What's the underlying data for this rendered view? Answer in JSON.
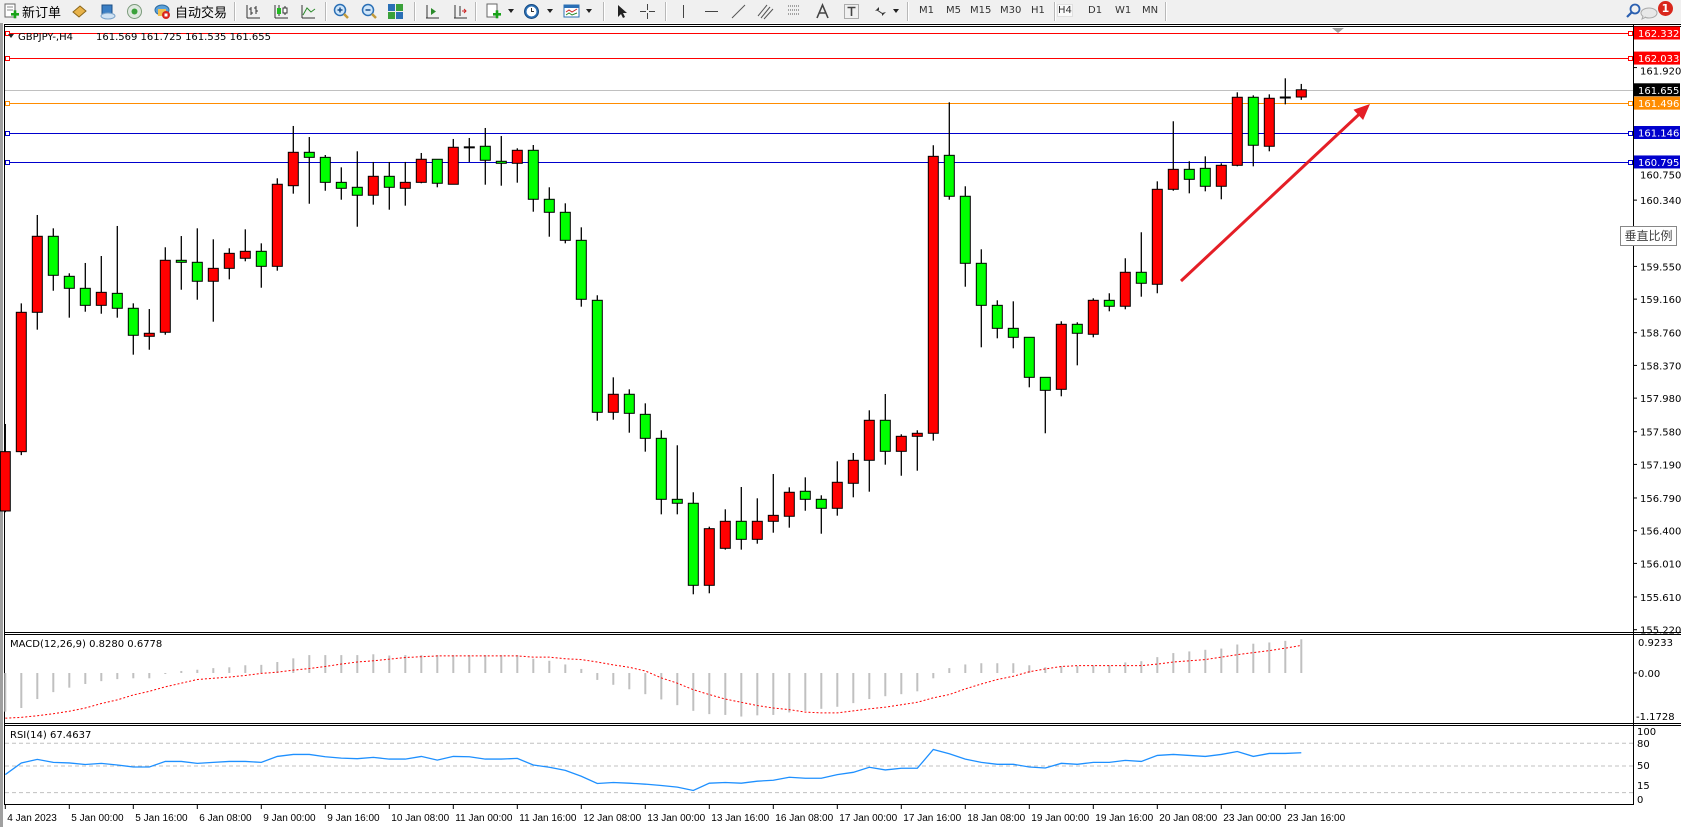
{
  "toolbar": {
    "new_order": "新订单",
    "auto_trading": "自动交易",
    "timeframes": [
      "M1",
      "M5",
      "M15",
      "M30",
      "H1",
      "H4",
      "D1",
      "W1",
      "MN"
    ],
    "active_timeframe": "H4",
    "notification_count": "1",
    "icons": [
      "new-order-icon",
      "market-watch-icon",
      "navigator-icon",
      "signals-icon",
      "auto-trading-icon",
      "bar-chart-icon",
      "candlestick-icon",
      "line-chart-icon",
      "zoom-in-icon",
      "zoom-out-icon",
      "tile-windows-icon",
      "auto-scroll-icon",
      "chart-shift-icon",
      "indicators-icon",
      "periods-icon",
      "templates-icon",
      "cursor-icon",
      "crosshair-icon",
      "vertical-line-icon",
      "horizontal-line-icon",
      "trendline-icon",
      "equidistant-channel-icon",
      "fibonacci-icon",
      "text-icon",
      "text-label-icon",
      "arrows-icon",
      "search-icon",
      "chat-icon"
    ]
  },
  "chart": {
    "symbol": "GBPJPY-,H4",
    "ohlc_readout": "161.569 161.725 161.535 161.655",
    "vertical_scale_button": "垂直比例",
    "bid_line": {
      "price": "161.655",
      "color": "#c0c0c0"
    },
    "price_levels": [
      {
        "price": "162.332",
        "color": "#ff0000"
      },
      {
        "price": "162.033",
        "color": "#ff0000"
      },
      {
        "price": "161.496",
        "color": "#ff8c00"
      },
      {
        "price": "161.146",
        "color": "#0000cd"
      },
      {
        "price": "160.795",
        "color": "#0000cd"
      }
    ],
    "annotation": {
      "type": "arrow",
      "color": "#e41e26",
      "direction": "up-right"
    },
    "colors": {
      "bull": "#ff0000",
      "bear": "#00ff00",
      "grid": "none"
    }
  },
  "macd": {
    "label": "MACD(12,26,9) 0.8280 0.6778",
    "axis_labels": [
      "0.9233",
      "0.00",
      "-1.1728"
    ]
  },
  "rsi": {
    "label": "RSI(14) 67.4637",
    "axis_labels": [
      "100",
      "80",
      "50",
      "15",
      "0"
    ],
    "levels": [
      80,
      50,
      15
    ],
    "color": "#1e90ff"
  },
  "chart_data": {
    "type": "candlestick",
    "timeframe": "H4",
    "price_axis_ticks": [
      "161.920",
      "160.750",
      "160.340",
      "159.550",
      "159.160",
      "158.760",
      "158.370",
      "157.980",
      "157.580",
      "157.190",
      "156.790",
      "156.400",
      "156.010",
      "155.610",
      "155.220"
    ],
    "ylim": [
      155.13,
      162.42
    ],
    "time_labels": [
      "4 Jan 2023",
      "5 Jan 00:00",
      "5 Jan 16:00",
      "6 Jan 08:00",
      "9 Jan 00:00",
      "9 Jan 16:00",
      "10 Jan 08:00",
      "11 Jan 00:00",
      "11 Jan 16:00",
      "12 Jan 08:00",
      "13 Jan 00:00",
      "13 Jan 16:00",
      "16 Jan 08:00",
      "17 Jan 00:00",
      "17 Jan 16:00",
      "18 Jan 08:00",
      "19 Jan 00:00",
      "19 Jan 16:00",
      "20 Jan 08:00",
      "23 Jan 00:00",
      "23 Jan 16:00"
    ],
    "time_label_every_n_bars": 4,
    "ohlc_fields": [
      "open",
      "high",
      "low",
      "close"
    ],
    "ohlc": [
      [
        156.635,
        157.672,
        156.62,
        157.342
      ],
      [
        157.342,
        159.11,
        157.3,
        159.003
      ],
      [
        159.003,
        160.163,
        158.796,
        159.909
      ],
      [
        159.909,
        160.004,
        159.26,
        159.444
      ],
      [
        159.432,
        159.468,
        158.939,
        159.289
      ],
      [
        159.289,
        159.591,
        159.01,
        159.086
      ],
      [
        159.086,
        159.674,
        158.986,
        159.241
      ],
      [
        159.229,
        160.032,
        158.939,
        159.051
      ],
      [
        159.051,
        159.11,
        158.498,
        158.729
      ],
      [
        158.717,
        159.042,
        158.557,
        158.753
      ],
      [
        158.765,
        159.778,
        158.736,
        159.623
      ],
      [
        159.623,
        159.912,
        159.272,
        159.599
      ],
      [
        159.599,
        160.004,
        159.153,
        159.373
      ],
      [
        159.373,
        159.873,
        158.891,
        159.527
      ],
      [
        159.527,
        159.766,
        159.396,
        159.706
      ],
      [
        159.647,
        159.992,
        159.611,
        159.73
      ],
      [
        159.73,
        159.825,
        159.296,
        159.551
      ],
      [
        159.551,
        160.6,
        159.499,
        160.529
      ],
      [
        160.512,
        161.224,
        160.417,
        160.91
      ],
      [
        160.91,
        161.092,
        160.297,
        160.85
      ],
      [
        160.85,
        160.878,
        160.452,
        160.552
      ],
      [
        160.552,
        160.731,
        160.345,
        160.481
      ],
      [
        160.493,
        160.922,
        160.023,
        160.398
      ],
      [
        160.398,
        160.795,
        160.286,
        160.624
      ],
      [
        160.624,
        160.795,
        160.226,
        160.493
      ],
      [
        160.481,
        160.795,
        160.274,
        160.552
      ],
      [
        160.552,
        160.902,
        160.541,
        160.827
      ],
      [
        160.827,
        160.827,
        160.493,
        160.541
      ],
      [
        160.529,
        161.069,
        160.529,
        160.97
      ],
      [
        160.97,
        161.081,
        160.795,
        160.975
      ],
      [
        160.982,
        161.2,
        160.524,
        160.815
      ],
      [
        160.803,
        161.104,
        160.512,
        160.779
      ],
      [
        160.779,
        160.958,
        160.548,
        160.934
      ],
      [
        160.934,
        160.997,
        160.202,
        160.35
      ],
      [
        160.35,
        160.493,
        159.904,
        160.195
      ],
      [
        160.195,
        160.302,
        159.825,
        159.861
      ],
      [
        159.861,
        160.016,
        159.07,
        159.158
      ],
      [
        159.146,
        159.206,
        157.711,
        157.811
      ],
      [
        157.811,
        158.228,
        157.723,
        158.026
      ],
      [
        158.026,
        158.085,
        157.568,
        157.799
      ],
      [
        157.787,
        157.918,
        157.342,
        157.501
      ],
      [
        157.501,
        157.597,
        156.595,
        156.774
      ],
      [
        156.774,
        157.418,
        156.595,
        156.727
      ],
      [
        156.727,
        156.858,
        155.642,
        155.749
      ],
      [
        155.749,
        156.448,
        155.654,
        156.424
      ],
      [
        156.19,
        156.655,
        156.174,
        156.512
      ],
      [
        156.512,
        156.921,
        156.174,
        156.297
      ],
      [
        156.297,
        156.786,
        156.245,
        156.512
      ],
      [
        156.512,
        157.076,
        156.376,
        156.583
      ],
      [
        156.572,
        156.917,
        156.436,
        156.858
      ],
      [
        156.87,
        157.036,
        156.638,
        156.774
      ],
      [
        156.774,
        156.822,
        156.364,
        156.667
      ],
      [
        156.667,
        157.227,
        156.579,
        156.977
      ],
      [
        156.965,
        157.326,
        156.798,
        157.239
      ],
      [
        157.239,
        157.835,
        156.865,
        157.716
      ],
      [
        157.716,
        158.029,
        157.187,
        157.346
      ],
      [
        157.346,
        157.549,
        157.055,
        157.525
      ],
      [
        157.525,
        157.597,
        157.115,
        157.561
      ],
      [
        157.561,
        160.994,
        157.473,
        160.862
      ],
      [
        160.874,
        161.506,
        160.345,
        160.386
      ],
      [
        160.386,
        160.505,
        159.308,
        159.587
      ],
      [
        159.587,
        159.754,
        158.586,
        159.086
      ],
      [
        159.086,
        159.146,
        158.693,
        158.812
      ],
      [
        158.812,
        159.134,
        158.574,
        158.705
      ],
      [
        158.705,
        158.705,
        158.109,
        158.228
      ],
      [
        158.228,
        158.228,
        157.561,
        158.073
      ],
      [
        158.085,
        158.896,
        158.002,
        158.86
      ],
      [
        158.86,
        158.884,
        158.371,
        158.753
      ],
      [
        158.741,
        159.17,
        158.705,
        159.146
      ],
      [
        159.146,
        159.23,
        159.015,
        159.075
      ],
      [
        159.075,
        159.647,
        159.039,
        159.48
      ],
      [
        159.48,
        159.957,
        159.189,
        159.349
      ],
      [
        159.337,
        160.564,
        159.23,
        160.469
      ],
      [
        160.469,
        161.28,
        160.452,
        160.707
      ],
      [
        160.707,
        160.803,
        160.421,
        160.588
      ],
      [
        160.719,
        160.862,
        160.445,
        160.505
      ],
      [
        160.505,
        160.779,
        160.35,
        160.755
      ],
      [
        160.755,
        161.625,
        160.743,
        161.566
      ],
      [
        161.566,
        161.589,
        160.743,
        160.994
      ],
      [
        160.982,
        161.601,
        160.922,
        161.554
      ],
      [
        161.566,
        161.792,
        161.482,
        161.569
      ],
      [
        161.569,
        161.725,
        161.535,
        161.655
      ]
    ],
    "macd_histogram": [
      -0.95,
      -0.86,
      -0.64,
      -0.47,
      -0.36,
      -0.27,
      -0.2,
      -0.15,
      -0.13,
      -0.13,
      -0.02,
      0.05,
      0.08,
      0.12,
      0.14,
      0.19,
      0.2,
      0.27,
      0.36,
      0.44,
      0.44,
      0.44,
      0.44,
      0.46,
      0.43,
      0.44,
      0.44,
      0.44,
      0.44,
      0.44,
      0.44,
      0.44,
      0.44,
      0.35,
      0.3,
      0.21,
      0.1,
      -0.17,
      -0.29,
      -0.4,
      -0.52,
      -0.65,
      -0.79,
      -0.93,
      -1.01,
      -1.03,
      -1.07,
      -1.04,
      -1.03,
      -0.97,
      -0.93,
      -0.88,
      -0.83,
      -0.74,
      -0.64,
      -0.57,
      -0.52,
      -0.45,
      -0.13,
      0.12,
      0.21,
      0.24,
      0.24,
      0.24,
      0.19,
      0.14,
      0.17,
      0.17,
      0.19,
      0.19,
      0.26,
      0.29,
      0.39,
      0.49,
      0.53,
      0.57,
      0.6,
      0.7,
      0.72,
      0.75,
      0.79,
      0.828
    ],
    "macd_signal": [
      -1.11,
      -1.09,
      -1.05,
      -1.0,
      -0.94,
      -0.86,
      -0.75,
      -0.66,
      -0.54,
      -0.45,
      -0.34,
      -0.25,
      -0.16,
      -0.13,
      -0.1,
      -0.06,
      -0.01,
      0.02,
      0.07,
      0.11,
      0.16,
      0.22,
      0.27,
      0.3,
      0.34,
      0.38,
      0.4,
      0.42,
      0.42,
      0.42,
      0.42,
      0.42,
      0.42,
      0.39,
      0.39,
      0.35,
      0.33,
      0.27,
      0.2,
      0.14,
      0.05,
      -0.12,
      -0.25,
      -0.41,
      -0.53,
      -0.64,
      -0.72,
      -0.8,
      -0.86,
      -0.9,
      -0.96,
      -0.98,
      -0.98,
      -0.93,
      -0.88,
      -0.84,
      -0.78,
      -0.72,
      -0.61,
      -0.53,
      -0.39,
      -0.27,
      -0.16,
      -0.08,
      0.03,
      0.1,
      0.16,
      0.18,
      0.18,
      0.18,
      0.18,
      0.18,
      0.22,
      0.27,
      0.3,
      0.33,
      0.39,
      0.45,
      0.5,
      0.55,
      0.61,
      0.6778
    ],
    "macd_ylim": [
      -1.1728,
      0.9233
    ],
    "rsi_values": [
      38.7,
      54.0,
      58.7,
      54.8,
      54.0,
      52.0,
      53.5,
      51.3,
      48.7,
      48.7,
      56.0,
      56.0,
      53.5,
      54.8,
      56.0,
      56.0,
      54.8,
      62.6,
      65.2,
      65.2,
      62.2,
      60.4,
      59.6,
      61.3,
      59.1,
      59.1,
      62.6,
      57.8,
      62.6,
      62.2,
      59.1,
      59.1,
      60.0,
      51.3,
      48.3,
      44.3,
      36.5,
      27.0,
      28.3,
      27.4,
      26.1,
      24.3,
      22.2,
      17.8,
      27.4,
      28.3,
      27.4,
      30.0,
      31.3,
      35.2,
      33.9,
      33.9,
      38.7,
      41.7,
      48.3,
      44.8,
      47.0,
      47.0,
      71.7,
      66.1,
      59.1,
      54.8,
      52.2,
      52.2,
      48.7,
      47.4,
      53.5,
      52.2,
      54.8,
      54.8,
      57.4,
      56.0,
      63.9,
      65.2,
      63.9,
      62.6,
      65.2,
      69.1,
      62.6,
      66.5,
      66.5,
      67.46
    ],
    "rsi_ylim": [
      0,
      100
    ]
  }
}
